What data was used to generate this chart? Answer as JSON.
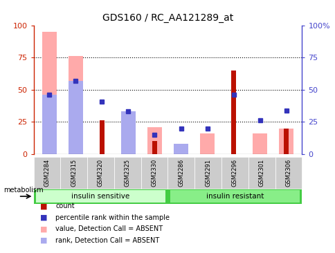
{
  "title": "GDS160 / RC_AA121289_at",
  "samples": [
    "GSM2284",
    "GSM2315",
    "GSM2320",
    "GSM2325",
    "GSM2330",
    "GSM2286",
    "GSM2291",
    "GSM2296",
    "GSM2301",
    "GSM2306"
  ],
  "count_values": [
    0,
    0,
    26,
    0,
    10,
    0,
    0,
    65,
    0,
    20
  ],
  "rank_values": [
    46,
    57,
    41,
    33,
    15,
    20,
    20,
    46,
    26,
    34
  ],
  "pink_bar_values": [
    95,
    76,
    0,
    20,
    21,
    7,
    16,
    0,
    16,
    20
  ],
  "blue_bar_values": [
    46,
    57,
    0,
    33,
    0,
    8,
    0,
    0,
    0,
    0
  ],
  "insulin_sensitive_count": 5,
  "insulin_resistant_count": 5,
  "ylim_left": [
    0,
    100
  ],
  "ylim_right": [
    0,
    100
  ],
  "yticks_left": [
    0,
    25,
    50,
    75,
    100
  ],
  "yticks_right": [
    0,
    25,
    50,
    75,
    100
  ],
  "ylabel_left_color": "#cc2200",
  "ylabel_right_color": "#4444cc",
  "pink_color": "#ffaaaa",
  "blue_light_color": "#aaaaee",
  "red_color": "#bb1100",
  "blue_dark_color": "#3333bb",
  "legend_items": [
    {
      "label": "count",
      "color": "#bb1100"
    },
    {
      "label": "percentile rank within the sample",
      "color": "#3333bb"
    },
    {
      "label": "value, Detection Call = ABSENT",
      "color": "#ffaaaa"
    },
    {
      "label": "rank, Detection Call = ABSENT",
      "color": "#aaaaee"
    }
  ],
  "group_labels": [
    "insulin sensitive",
    "insulin resistant"
  ],
  "metabolism_label": "metabolism",
  "tick_label_area_color": "#cccccc",
  "sens_light": "#ccffcc",
  "sens_dark": "#66dd66",
  "res_light": "#88ee88",
  "res_dark": "#44cc44",
  "group_border": "#22aa22"
}
